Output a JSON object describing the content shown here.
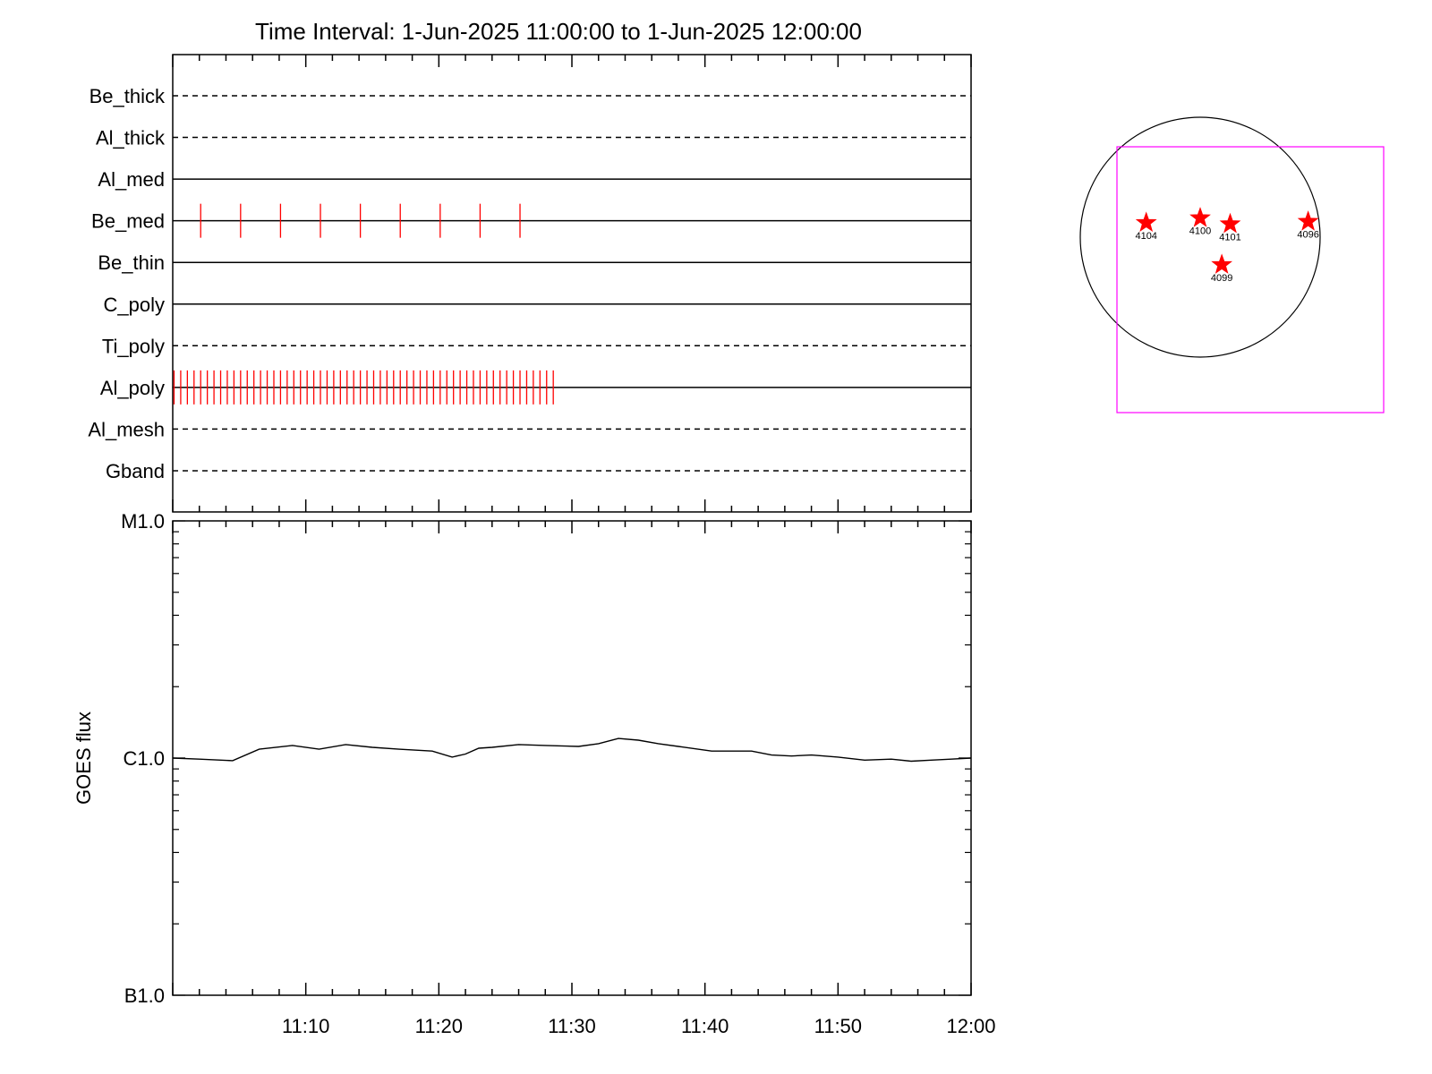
{
  "chart_data": [
    {
      "type": "timeline",
      "title": "Time Interval:  1-Jun-2025 11:00:00 to  1-Jun-2025 12:00:00",
      "x_unit": "minutes after 11:00",
      "xlim": [
        0,
        60
      ],
      "rows": [
        {
          "label": "Be_thick",
          "style": "dashed",
          "events": []
        },
        {
          "label": "Al_thick",
          "style": "dashed",
          "events": []
        },
        {
          "label": "Al_med",
          "style": "solid",
          "events": []
        },
        {
          "label": "Be_med",
          "style": "solid",
          "events": [
            2.1,
            5.1,
            8.1,
            11.1,
            14.1,
            17.1,
            20.1,
            23.1,
            26.1
          ]
        },
        {
          "label": "Be_thin",
          "style": "solid",
          "events": []
        },
        {
          "label": "C_poly",
          "style": "solid",
          "events": []
        },
        {
          "label": "Ti_poly",
          "style": "dashed",
          "events": []
        },
        {
          "label": "Al_poly",
          "style": "solid",
          "event_range": [
            0.1,
            28.6
          ],
          "event_step": 0.5
        },
        {
          "label": "Al_mesh",
          "style": "dashed",
          "events": []
        },
        {
          "label": "Gband",
          "style": "dashed",
          "events": []
        }
      ],
      "event_color": "#ff0000"
    },
    {
      "type": "line",
      "ylabel": "GOES flux",
      "yscale": "log",
      "ylim": [
        1e-07,
        1e-05
      ],
      "ytick_labels": [
        {
          "value": 1e-05,
          "label": "M1.0"
        },
        {
          "value": 1e-06,
          "label": "C1.0"
        },
        {
          "value": 1e-07,
          "label": "B1.0"
        }
      ],
      "xlim": [
        0,
        60
      ],
      "xtick_labels": [
        {
          "value": 10,
          "label": "11:10"
        },
        {
          "value": 20,
          "label": "11:20"
        },
        {
          "value": 30,
          "label": "11:30"
        },
        {
          "value": 40,
          "label": "11:40"
        },
        {
          "value": 50,
          "label": "11:50"
        },
        {
          "value": 60,
          "label": "12:00"
        }
      ],
      "series": [
        {
          "color": "#000000",
          "x": [
            0,
            2,
            4.5,
            6.5,
            9,
            11,
            13,
            15,
            17,
            19.5,
            21,
            22,
            23,
            24,
            26,
            28,
            30.5,
            32,
            33.5,
            35,
            36.5,
            38,
            40.5,
            42,
            43.5,
            45,
            46.5,
            48,
            50,
            52,
            54,
            55.5,
            57,
            58.5,
            60
          ],
          "y": [
            1e-06,
            9.9e-07,
            9.75e-07,
            1.09e-06,
            1.13e-06,
            1.09e-06,
            1.14e-06,
            1.11e-06,
            1.09e-06,
            1.07e-06,
            1.01e-06,
            1.04e-06,
            1.1e-06,
            1.11e-06,
            1.14e-06,
            1.13e-06,
            1.12e-06,
            1.15e-06,
            1.21e-06,
            1.19e-06,
            1.15e-06,
            1.12e-06,
            1.07e-06,
            1.07e-06,
            1.07e-06,
            1.03e-06,
            1.02e-06,
            1.03e-06,
            1.01e-06,
            9.8e-07,
            9.9e-07,
            9.7e-07,
            9.8e-07,
            9.9e-07,
            1e-06
          ]
        }
      ]
    },
    {
      "type": "scatter",
      "subtype": "solar-disk-map",
      "disk_color": "#000000",
      "fov_color": "#ff00ff",
      "points": [
        {
          "label": "4104",
          "x": -0.45,
          "y": 0.12
        },
        {
          "label": "4100",
          "x": 0.0,
          "y": 0.16
        },
        {
          "label": "4101",
          "x": 0.25,
          "y": 0.11
        },
        {
          "label": "4096",
          "x": 0.9,
          "y": 0.13
        },
        {
          "label": "4099",
          "x": 0.18,
          "y": -0.23
        }
      ],
      "marker": "star",
      "marker_color": "#ff0000"
    }
  ]
}
